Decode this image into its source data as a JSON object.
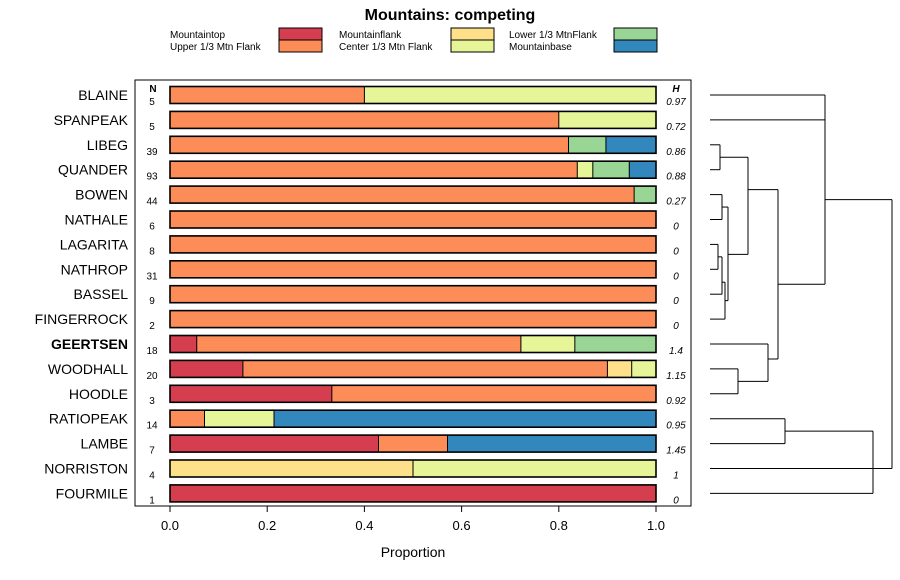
{
  "chart_data": {
    "type": "bar",
    "orientation": "horizontal",
    "stacked": true,
    "title": "Mountains: competing",
    "xlabel": "Proportion",
    "ylabel": "",
    "xlim": [
      0,
      1
    ],
    "xticks": [
      0.0,
      0.2,
      0.4,
      0.6,
      0.8,
      1.0
    ],
    "xtick_labels": [
      "0.0",
      "0.2",
      "0.4",
      "0.6",
      "0.8",
      "1.0"
    ],
    "n_header": "N",
    "h_header": "H",
    "highlighted_category": "GEERTSEN",
    "series": [
      {
        "name": "Mountaintop",
        "color": "#d53e4f"
      },
      {
        "name": "Upper 1/3 Mtn Flank",
        "color": "#fc8d59"
      },
      {
        "name": "Mountainflank",
        "color": "#fee08b"
      },
      {
        "name": "Center 1/3 Mtn Flank",
        "color": "#e6f598"
      },
      {
        "name": "Lower 1/3 MtnFlank",
        "color": "#99d594"
      },
      {
        "name": "Mountainbase",
        "color": "#3288bd"
      }
    ],
    "rows": [
      {
        "name": "BLAINE",
        "n": "5",
        "h": "0.97",
        "values": [
          0,
          0.4,
          0,
          0.6,
          0,
          0
        ]
      },
      {
        "name": "SPANPEAK",
        "n": "5",
        "h": "0.72",
        "values": [
          0,
          0.8,
          0,
          0.2,
          0,
          0
        ]
      },
      {
        "name": "LIBEG",
        "n": "39",
        "h": "0.86",
        "values": [
          0,
          0.82,
          0,
          0,
          0.077,
          0.103
        ]
      },
      {
        "name": "QUANDER",
        "n": "93",
        "h": "0.88",
        "values": [
          0,
          0.838,
          0,
          0.032,
          0.075,
          0.055
        ]
      },
      {
        "name": "BOWEN",
        "n": "44",
        "h": "0.27",
        "values": [
          0,
          0.955,
          0,
          0,
          0.045,
          0
        ]
      },
      {
        "name": "NATHALE",
        "n": "6",
        "h": "0",
        "values": [
          0,
          1,
          0,
          0,
          0,
          0
        ]
      },
      {
        "name": "LAGARITA",
        "n": "8",
        "h": "0",
        "values": [
          0,
          1,
          0,
          0,
          0,
          0
        ]
      },
      {
        "name": "NATHROP",
        "n": "31",
        "h": "0",
        "values": [
          0,
          1,
          0,
          0,
          0,
          0
        ]
      },
      {
        "name": "BASSEL",
        "n": "9",
        "h": "0",
        "values": [
          0,
          1,
          0,
          0,
          0,
          0
        ]
      },
      {
        "name": "FINGERROCK",
        "n": "2",
        "h": "0",
        "values": [
          0,
          1,
          0,
          0,
          0,
          0
        ]
      },
      {
        "name": "GEERTSEN",
        "n": "18",
        "h": "1.4",
        "values": [
          0.055,
          0.667,
          0,
          0.111,
          0.167,
          0
        ]
      },
      {
        "name": "WOODHALL",
        "n": "20",
        "h": "1.15",
        "values": [
          0.15,
          0.75,
          0.05,
          0.05,
          0,
          0
        ]
      },
      {
        "name": "HOODLE",
        "n": "3",
        "h": "0.92",
        "values": [
          0.333,
          0.667,
          0,
          0,
          0,
          0
        ]
      },
      {
        "name": "RATIOPEAK",
        "n": "14",
        "h": "0.95",
        "values": [
          0,
          0.071,
          0,
          0.143,
          0,
          0.786
        ]
      },
      {
        "name": "LAMBE",
        "n": "7",
        "h": "1.45",
        "values": [
          0.429,
          0.142,
          0,
          0,
          0,
          0.429
        ]
      },
      {
        "name": "NORRISTON",
        "n": "4",
        "h": "1",
        "values": [
          0,
          0,
          0.5,
          0.5,
          0,
          0
        ]
      },
      {
        "name": "FOURMILE",
        "n": "1",
        "h": "0",
        "values": [
          1,
          0,
          0,
          0,
          0,
          0
        ]
      }
    ],
    "dendrogram": "hierarchical clustering tree of the rows shown to the right of the panel"
  }
}
